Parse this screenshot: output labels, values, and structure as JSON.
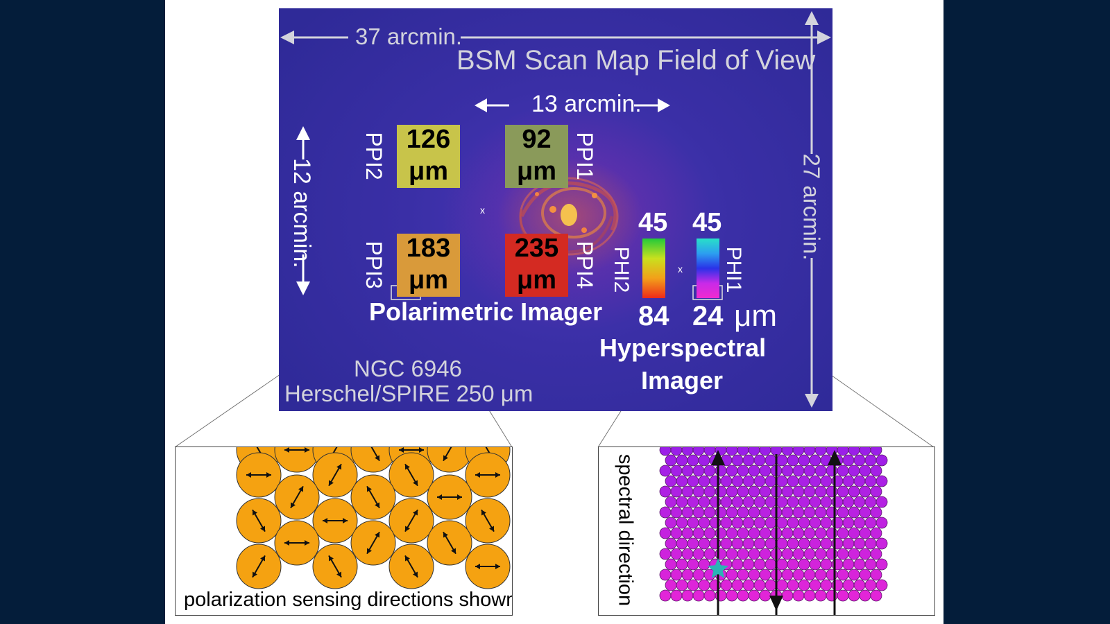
{
  "map": {
    "fov_width": "37 arcmin.",
    "fov_title": "BSM Scan Map Field of View",
    "fov_height": "27 arcmin.",
    "ppi_width": "13 arcmin.",
    "ppi_height": "12 arcmin.",
    "target_name": "NGC 6946",
    "instrument_credit": "Herschel/SPIRE 250 μm",
    "center_marker": "x",
    "colors": {
      "sky_dark": "#2f2a98",
      "sky_mid": "#4a36b8",
      "guide_lines": "#d3d3dc"
    }
  },
  "polarimetric_imager": {
    "title": "Polarimetric Imager",
    "unit": "μm",
    "channels": [
      {
        "id": "PPI2",
        "wavelength": "126",
        "color": "#c8c44a"
      },
      {
        "id": "PPI1",
        "wavelength": "92",
        "color": "#8a9a5a"
      },
      {
        "id": "PPI3",
        "wavelength": "183",
        "color": "#d99a3a"
      },
      {
        "id": "PPI4",
        "wavelength": "235",
        "color": "#d42a22"
      }
    ]
  },
  "hyperspectral_imager": {
    "title_line1": "Hyperspectral",
    "title_line2": "Imager",
    "unit": "μm",
    "channels": [
      {
        "id": "PHI2",
        "max": "45",
        "min": "84"
      },
      {
        "id": "PHI1",
        "max": "45",
        "min": "24"
      }
    ]
  },
  "insets": {
    "polarization_caption": "polarization sensing directions shown",
    "polarization_color": "#f5a211",
    "spectral_caption": "spectral direction",
    "spectral_color_top": "#9b1fe8",
    "spectral_color_bottom": "#e225d8",
    "star_color": "#2ab5b5"
  }
}
